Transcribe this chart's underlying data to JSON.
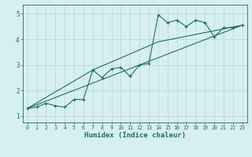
{
  "xlabel": "Humidex (Indice chaleur)",
  "ylabel": "",
  "bg_color": "#d7efee",
  "grid_color": "#c0d8d8",
  "line_color": "#1a6e6e",
  "xlim": [
    -0.5,
    23.5
  ],
  "ylim": [
    0.75,
    5.35
  ],
  "xticks": [
    0,
    1,
    2,
    3,
    4,
    5,
    6,
    7,
    8,
    9,
    10,
    11,
    12,
    13,
    14,
    15,
    16,
    17,
    18,
    19,
    20,
    21,
    22,
    23
  ],
  "yticks": [
    1,
    2,
    3,
    4,
    5
  ],
  "series1_x": [
    0,
    1,
    2,
    3,
    4,
    5,
    6,
    7,
    8,
    9,
    10,
    11,
    12,
    13,
    14,
    15,
    16,
    17,
    18,
    19,
    20,
    21,
    22,
    23
  ],
  "series1_y": [
    1.3,
    1.35,
    1.5,
    1.4,
    1.35,
    1.65,
    1.65,
    2.8,
    2.5,
    2.85,
    2.9,
    2.55,
    3.0,
    3.05,
    4.95,
    4.65,
    4.75,
    4.5,
    4.75,
    4.65,
    4.1,
    4.45,
    4.45,
    4.55
  ],
  "series2_x": [
    0,
    23
  ],
  "series2_y": [
    1.3,
    4.55
  ],
  "series3_x": [
    0,
    7,
    14,
    23
  ],
  "series3_y": [
    1.3,
    2.8,
    3.9,
    4.55
  ]
}
